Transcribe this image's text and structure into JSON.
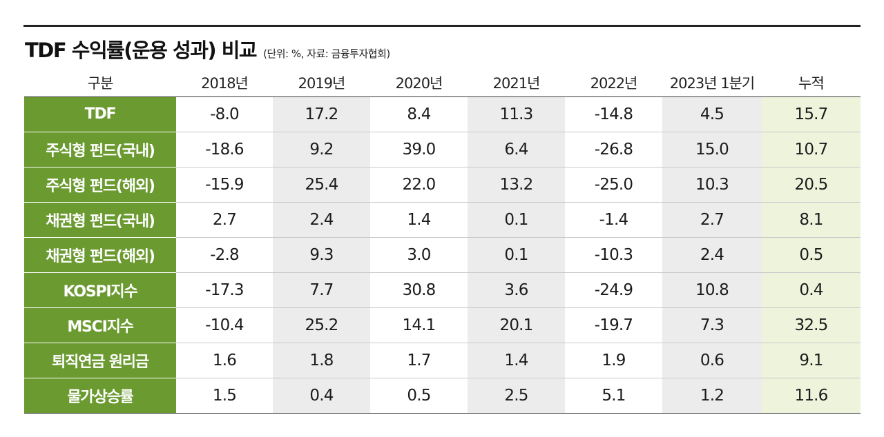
{
  "title": "TDF 수익률(운용 성과) 비교",
  "subtitle": "(단위: %, 자료: 금융투자협회)",
  "colors": {
    "category_fill": "#6b9a30",
    "shade_fill": "#ececec",
    "cumulative_fill": "#eef3dc"
  },
  "chart_data": {
    "type": "table",
    "title": "TDF 수익률(운용 성과) 비교",
    "unit": "%",
    "source": "금융투자협회",
    "corner_header": "구분",
    "columns": [
      "2018년",
      "2019년",
      "2020년",
      "2021년",
      "2022년",
      "2023년 1분기",
      "누적"
    ],
    "rows": [
      {
        "label": "TDF",
        "values": [
          "-8.0",
          "17.2",
          "8.4",
          "11.3",
          "-14.8",
          "4.5",
          "15.7"
        ]
      },
      {
        "label": "주식형 펀드(국내)",
        "values": [
          "-18.6",
          "9.2",
          "39.0",
          "6.4",
          "-26.8",
          "15.0",
          "10.7"
        ]
      },
      {
        "label": "주식형 펀드(해외)",
        "values": [
          "-15.9",
          "25.4",
          "22.0",
          "13.2",
          "-25.0",
          "10.3",
          "20.5"
        ]
      },
      {
        "label": "채권형 펀드(국내)",
        "values": [
          "2.7",
          "2.4",
          "1.4",
          "0.1",
          "-1.4",
          "2.7",
          "8.1"
        ]
      },
      {
        "label": "채권형 펀드(해외)",
        "values": [
          "-2.8",
          "9.3",
          "3.0",
          "0.1",
          "-10.3",
          "2.4",
          "0.5"
        ]
      },
      {
        "label": "KOSPI지수",
        "values": [
          "-17.3",
          "7.7",
          "30.8",
          "3.6",
          "-24.9",
          "10.8",
          "0.4"
        ]
      },
      {
        "label": "MSCI지수",
        "values": [
          "-10.4",
          "25.2",
          "14.1",
          "20.1",
          "-19.7",
          "7.3",
          "32.5"
        ]
      },
      {
        "label": "퇴직연금 원리금",
        "values": [
          "1.6",
          "1.8",
          "1.7",
          "1.4",
          "1.9",
          "0.6",
          "9.1"
        ]
      },
      {
        "label": "물가상승률",
        "values": [
          "1.5",
          "0.4",
          "0.5",
          "2.5",
          "5.1",
          "1.2",
          "11.6"
        ]
      }
    ]
  }
}
